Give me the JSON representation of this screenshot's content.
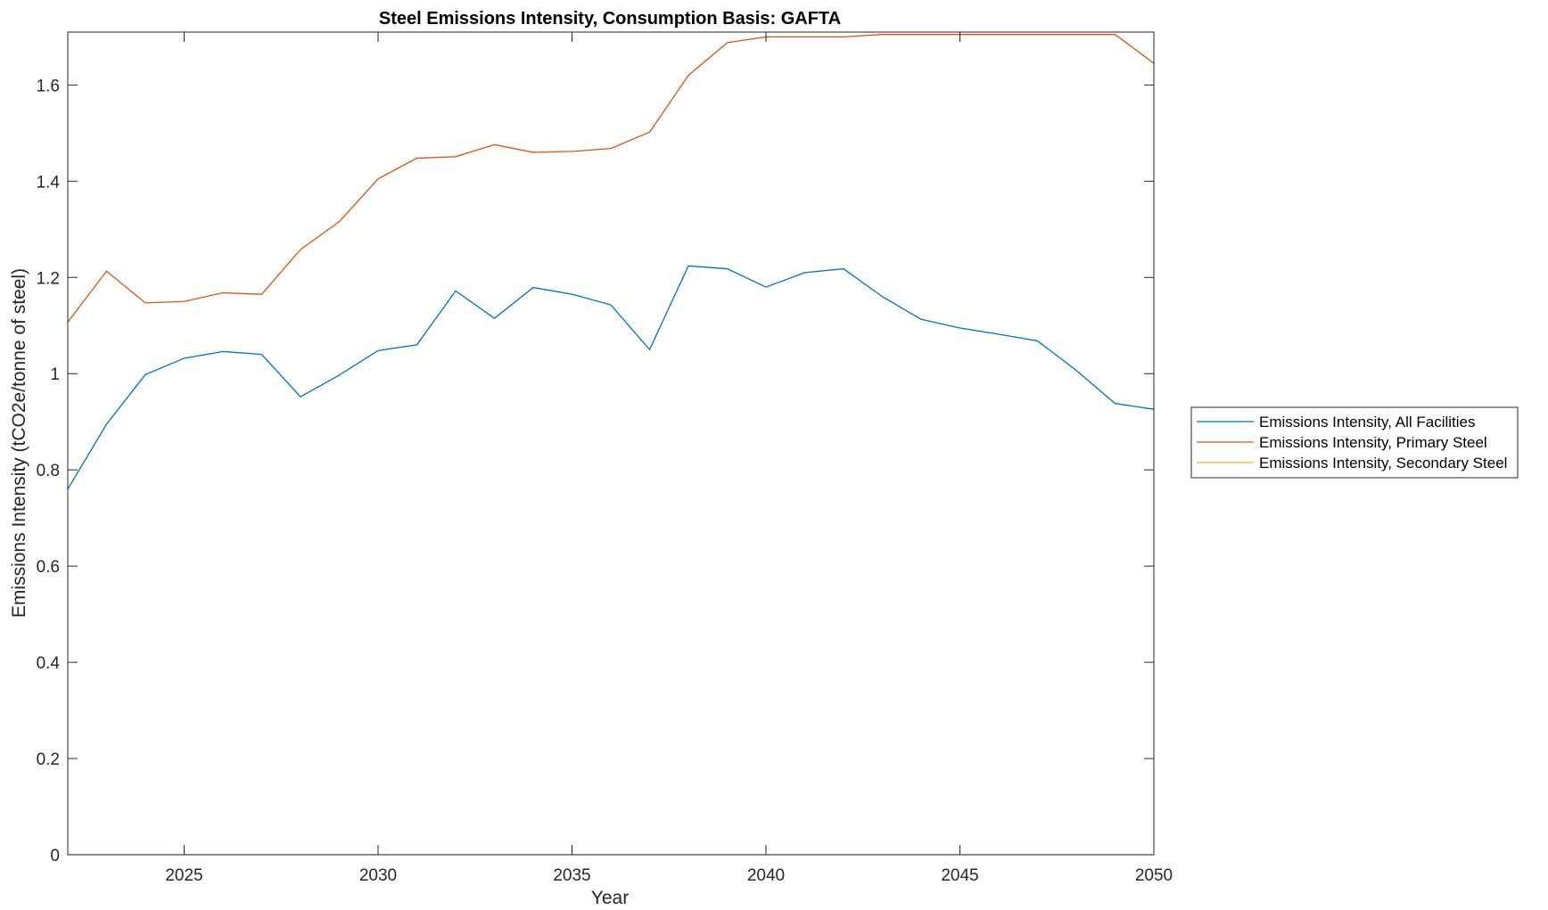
{
  "chart_data": {
    "type": "line",
    "title": "Steel Emissions Intensity, Consumption Basis: GAFTA",
    "xlabel": "Year",
    "ylabel": "Emissions Intensity (tCO2e/tonne of steel)",
    "xlim": [
      2022,
      2050
    ],
    "ylim": [
      0,
      1.71
    ],
    "x_ticks": [
      2025,
      2030,
      2035,
      2040,
      2045,
      2050
    ],
    "x_tick_labels": [
      "2025",
      "2030",
      "2035",
      "2040",
      "2045",
      "2050"
    ],
    "y_ticks": [
      0,
      0.2,
      0.4,
      0.6,
      0.8,
      1.0,
      1.2,
      1.4,
      1.6
    ],
    "y_tick_labels": [
      "0",
      "0.2",
      "0.4",
      "0.6",
      "0.8",
      "1",
      "1.2",
      "1.4",
      "1.6"
    ],
    "grid": false,
    "legend_position": "outside-right",
    "x": [
      2022,
      2023,
      2024,
      2025,
      2026,
      2027,
      2028,
      2029,
      2030,
      2031,
      2032,
      2033,
      2034,
      2035,
      2036,
      2037,
      2038,
      2039,
      2040,
      2041,
      2042,
      2043,
      2044,
      2045,
      2046,
      2047,
      2048,
      2049,
      2050
    ],
    "series": [
      {
        "name": "Emissions Intensity, All Facilities",
        "color": "#0072BD",
        "values": [
          0.76,
          0.895,
          0.998,
          1.032,
          1.046,
          1.04,
          0.952,
          0.997,
          1.048,
          1.06,
          1.172,
          1.115,
          1.179,
          1.165,
          1.143,
          1.05,
          1.224,
          1.218,
          1.18,
          1.21,
          1.218,
          1.16,
          1.113,
          1.095,
          1.082,
          1.068,
          1.007,
          0.938,
          0.926
        ]
      },
      {
        "name": "Emissions Intensity, Primary Steel",
        "color": "#D95319",
        "values": [
          1.107,
          1.213,
          1.147,
          1.15,
          1.168,
          1.165,
          1.258,
          1.316,
          1.405,
          1.448,
          1.451,
          1.476,
          1.46,
          1.462,
          1.468,
          1.502,
          1.62,
          1.688,
          1.7,
          1.7,
          1.7,
          1.705,
          1.705,
          1.705,
          1.705,
          1.705,
          1.705,
          1.705,
          1.645
        ]
      },
      {
        "name": "Emissions Intensity, Secondary Steel",
        "color": "#EDB120",
        "values": [
          0,
          0,
          0,
          0,
          0,
          0,
          0,
          0,
          0,
          0,
          0,
          0,
          0,
          0,
          0,
          0,
          0,
          0,
          0,
          0,
          0,
          0,
          0,
          0,
          0,
          0,
          0,
          0,
          0
        ]
      }
    ]
  }
}
